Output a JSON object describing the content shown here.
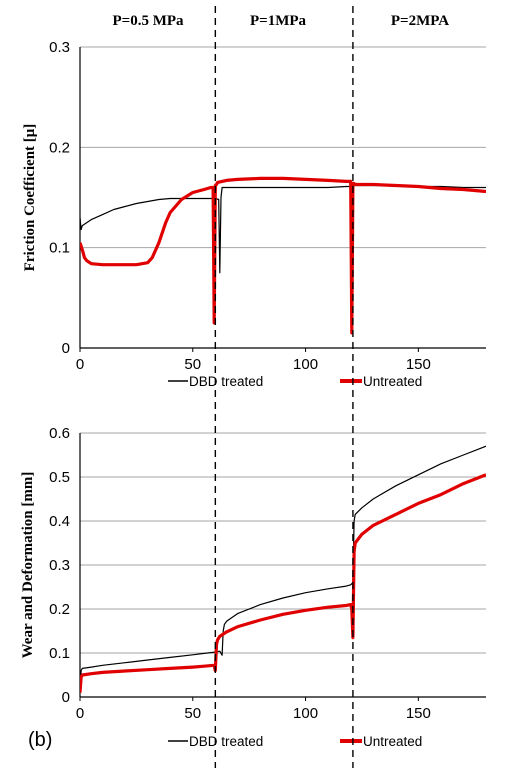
{
  "figure": {
    "panel_label": "(b)",
    "pressure_labels": [
      "P=0.5 MPa",
      "P=1MPa",
      "P=2MPA"
    ]
  },
  "colors": {
    "dbd_treated": "#000000",
    "untreated": "#e00000",
    "grid": "#a6a6a6"
  },
  "chart_data": [
    {
      "type": "line",
      "ylabel": "Friction Coefficient [μ]",
      "xlabel": "",
      "xlim": [
        0,
        180
      ],
      "ylim": [
        0,
        0.3
      ],
      "xticks": [
        "0",
        "50",
        "100",
        "150"
      ],
      "yticks": [
        "0",
        "0.1",
        "0.2",
        "0.3"
      ],
      "grid": true,
      "legend": "bottom",
      "vertical_markers_x": [
        60,
        121
      ],
      "series": [
        {
          "name": "DBD treated",
          "x": [
            0,
            0.5,
            1,
            3,
            5,
            10,
            15,
            20,
            25,
            30,
            35,
            40,
            45,
            50,
            55,
            60,
            61.5,
            62,
            62.5,
            63,
            64,
            65,
            70,
            75,
            80,
            90,
            100,
            110,
            118,
            120,
            120.5,
            121,
            121.5,
            122,
            125,
            130,
            140,
            150,
            160,
            170,
            180
          ],
          "y": [
            0.13,
            0.118,
            0.122,
            0.125,
            0.128,
            0.133,
            0.138,
            0.141,
            0.144,
            0.146,
            0.148,
            0.149,
            0.149,
            0.149,
            0.149,
            0.149,
            0.148,
            0.075,
            0.15,
            0.16,
            0.16,
            0.16,
            0.16,
            0.16,
            0.16,
            0.16,
            0.16,
            0.16,
            0.161,
            0.161,
            0.06,
            0.161,
            0.162,
            0.162,
            0.162,
            0.162,
            0.162,
            0.161,
            0.161,
            0.16,
            0.16
          ]
        },
        {
          "name": "Untreated",
          "x": [
            0,
            1,
            2,
            3,
            5,
            10,
            15,
            20,
            25,
            30,
            32,
            35,
            38,
            40,
            45,
            50,
            55,
            58,
            59,
            59.5,
            60,
            60.5,
            61,
            65,
            70,
            80,
            90,
            100,
            110,
            118,
            120,
            120.5,
            121,
            121.5,
            122,
            125,
            130,
            140,
            150,
            160,
            170,
            180
          ],
          "y": [
            0.105,
            0.098,
            0.09,
            0.087,
            0.084,
            0.083,
            0.083,
            0.083,
            0.083,
            0.085,
            0.09,
            0.105,
            0.125,
            0.135,
            0.148,
            0.155,
            0.158,
            0.16,
            0.16,
            0.025,
            0.162,
            0.163,
            0.165,
            0.167,
            0.168,
            0.169,
            0.169,
            0.168,
            0.167,
            0.166,
            0.166,
            0.015,
            0.164,
            0.164,
            0.163,
            0.163,
            0.163,
            0.162,
            0.161,
            0.159,
            0.158,
            0.156
          ]
        }
      ]
    },
    {
      "type": "line",
      "ylabel": "Wear and Deformation [mm]",
      "xlabel": "",
      "xlim": [
        0,
        180
      ],
      "ylim": [
        0,
        0.6
      ],
      "xticks": [
        "0",
        "50",
        "100",
        "150"
      ],
      "yticks": [
        "0",
        "0.1",
        "0.2",
        "0.3",
        "0.4",
        "0.5",
        "0.6"
      ],
      "grid": true,
      "legend": "bottom",
      "vertical_markers_x": [
        60,
        121
      ],
      "series": [
        {
          "name": "DBD treated",
          "x": [
            0,
            0.5,
            1,
            5,
            10,
            20,
            30,
            40,
            50,
            55,
            60,
            62,
            63,
            63.5,
            64,
            65,
            70,
            80,
            90,
            100,
            110,
            118,
            120,
            121,
            121.5,
            122,
            125,
            130,
            140,
            150,
            160,
            170,
            180
          ],
          "y": [
            0.01,
            0.06,
            0.065,
            0.068,
            0.072,
            0.078,
            0.084,
            0.09,
            0.096,
            0.099,
            0.102,
            0.104,
            0.095,
            0.15,
            0.165,
            0.172,
            0.19,
            0.21,
            0.225,
            0.237,
            0.246,
            0.252,
            0.255,
            0.26,
            0.4,
            0.415,
            0.43,
            0.45,
            0.48,
            0.505,
            0.53,
            0.55,
            0.57
          ]
        },
        {
          "name": "Untreated",
          "x": [
            0,
            0.5,
            1,
            5,
            10,
            20,
            30,
            40,
            50,
            55,
            59.5,
            60,
            60.5,
            61,
            62,
            65,
            70,
            80,
            90,
            100,
            110,
            118,
            120,
            120.5,
            121,
            121.5,
            122,
            125,
            130,
            140,
            150,
            160,
            170,
            180
          ],
          "y": [
            0.01,
            0.045,
            0.05,
            0.053,
            0.056,
            0.059,
            0.062,
            0.065,
            0.068,
            0.07,
            0.072,
            0.06,
            0.12,
            0.13,
            0.138,
            0.148,
            0.16,
            0.175,
            0.188,
            0.197,
            0.204,
            0.208,
            0.21,
            0.2,
            0.135,
            0.33,
            0.35,
            0.37,
            0.39,
            0.415,
            0.44,
            0.46,
            0.485,
            0.505
          ]
        }
      ]
    }
  ]
}
